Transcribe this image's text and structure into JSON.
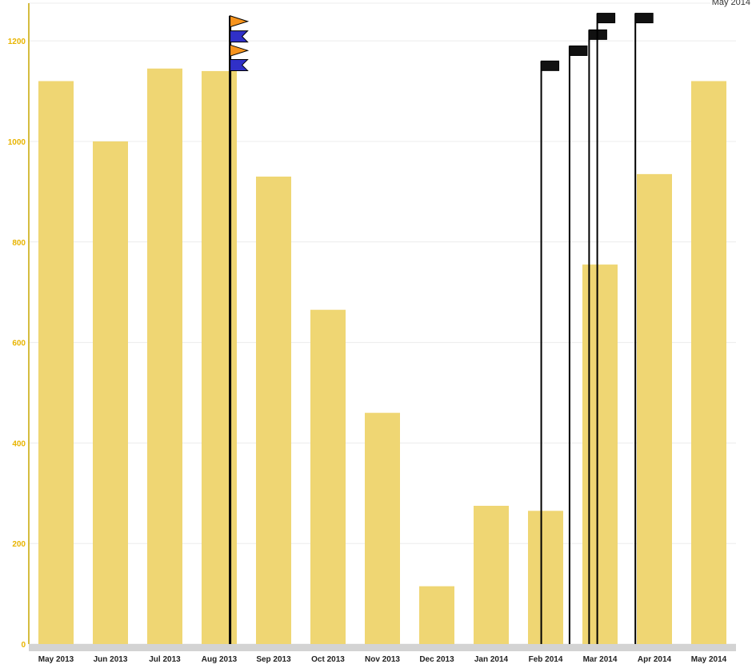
{
  "corner_label": "May 2014",
  "colors": {
    "bar": "#efd673",
    "y_axis": "#c7a600",
    "y_tick_text": "#e8b400",
    "x_tick_text": "#222222",
    "gridline": "#ececec",
    "x_axis_band": "#d3d3d3",
    "flag_orange": "#f7941d",
    "flag_blue": "#3030c8",
    "flag_black": "#111111"
  },
  "chart_data": {
    "type": "bar",
    "categories": [
      "May 2013",
      "Jun 2013",
      "Jul 2013",
      "Aug 2013",
      "Sep 2013",
      "Oct 2013",
      "Nov 2013",
      "Dec 2013",
      "Jan 2014",
      "Feb 2014",
      "Mar 2014",
      "Apr 2014",
      "May 2014"
    ],
    "values": [
      1120,
      1000,
      1145,
      1140,
      930,
      665,
      460,
      115,
      275,
      265,
      755,
      935,
      1120
    ],
    "ylim": [
      0,
      1275
    ],
    "yticks": [
      0,
      200,
      400,
      600,
      800,
      1000,
      1200
    ],
    "grid": true,
    "event_markers": [
      {
        "x": 3.2,
        "flags": [
          {
            "y_top": 1250,
            "style": "orange"
          },
          {
            "y_top": 1220,
            "style": "blue"
          },
          {
            "y_top": 1192,
            "style": "orange"
          },
          {
            "y_top": 1163,
            "style": "blue"
          }
        ]
      },
      {
        "x": 8.92,
        "flags": [
          {
            "y_top": 1160,
            "style": "black"
          }
        ]
      },
      {
        "x": 9.44,
        "flags": [
          {
            "y_top": 1190,
            "style": "black"
          }
        ]
      },
      {
        "x": 9.8,
        "flags": [
          {
            "y_top": 1222,
            "style": "black"
          }
        ]
      },
      {
        "x": 9.95,
        "flags": [
          {
            "y_top": 1255,
            "style": "black"
          }
        ]
      },
      {
        "x": 10.65,
        "flags": [
          {
            "y_top": 1255,
            "style": "black"
          }
        ]
      }
    ]
  }
}
